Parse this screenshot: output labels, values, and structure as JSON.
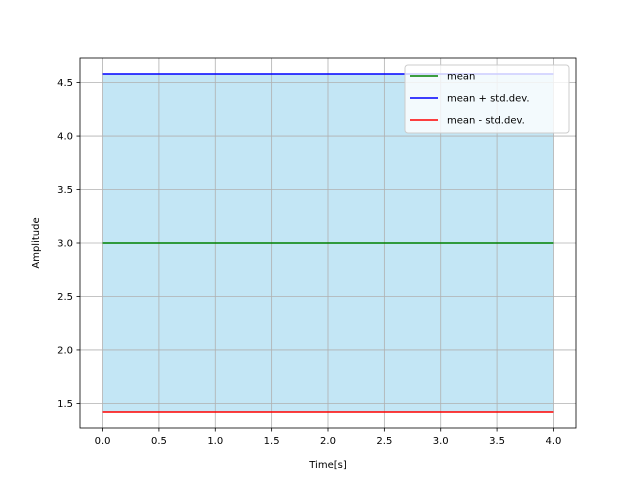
{
  "chart_data": {
    "type": "line",
    "title": "",
    "xlabel": "Time[s]",
    "ylabel": "Amplitude",
    "xlim": [
      -0.2,
      4.2
    ],
    "ylim": [
      1.27,
      4.73
    ],
    "xticks": [
      0.0,
      0.5,
      1.0,
      1.5,
      2.0,
      2.5,
      3.0,
      3.5,
      4.0
    ],
    "xtick_labels": [
      "0.0",
      "0.5",
      "1.0",
      "1.5",
      "2.0",
      "2.5",
      "3.0",
      "3.5",
      "4.0"
    ],
    "yticks": [
      1.5,
      2.0,
      2.5,
      3.0,
      3.5,
      4.0,
      4.5
    ],
    "ytick_labels": [
      "1.5",
      "2.0",
      "2.5",
      "3.0",
      "3.5",
      "4.0",
      "4.5"
    ],
    "grid": true,
    "legend_position": "top-right",
    "x": [
      0.0,
      4.0
    ],
    "series": [
      {
        "name": "mean",
        "values": [
          3.0,
          3.0
        ],
        "color": "#008000"
      },
      {
        "name": "mean + std.dev.",
        "values": [
          4.58,
          4.58
        ],
        "color": "#0000ff"
      },
      {
        "name": "mean - std.dev.",
        "values": [
          1.42,
          1.42
        ],
        "color": "#ff0000"
      }
    ],
    "fill_between": {
      "lower": 1.42,
      "upper": 4.58,
      "color": "#87ceeb"
    }
  }
}
